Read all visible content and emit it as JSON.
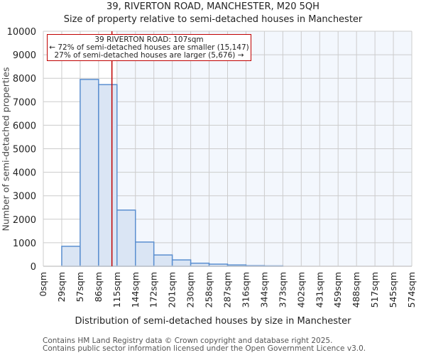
{
  "header": {
    "title": "39, RIVERTON ROAD, MANCHESTER, M20 5QH",
    "subtitle": "Size of property relative to semi-detached houses in Manchester"
  },
  "annotation": {
    "line1": "39 RIVERTON ROAD: 107sqm",
    "line2": "← 72% of semi-detached houses are smaller (15,147)",
    "line3": "27% of semi-detached houses are larger (5,676) →",
    "marker_value": 107
  },
  "footer": {
    "line1": "Contains HM Land Registry data © Crown copyright and database right 2025.",
    "line2": "Contains public sector information licensed under the Open Government Licence v3.0."
  },
  "colors": {
    "bar_fill": "#dae5f4",
    "bar_stroke": "#5b8fd0",
    "marker": "#c00000",
    "plot_bg_right": "#f3f7fd",
    "grid": "#cccccc"
  },
  "chart_data": {
    "type": "bar",
    "title": "39, RIVERTON ROAD, MANCHESTER, M20 5QH",
    "subtitle": "Size of property relative to semi-detached houses in Manchester",
    "xlabel": "Distribution of semi-detached houses by size in Manchester",
    "ylabel": "Number of semi-detached properties",
    "categories": [
      "0sqm",
      "29sqm",
      "57sqm",
      "86sqm",
      "115sqm",
      "144sqm",
      "172sqm",
      "201sqm",
      "230sqm",
      "258sqm",
      "287sqm",
      "316sqm",
      "344sqm",
      "373sqm",
      "402sqm",
      "431sqm",
      "459sqm",
      "488sqm",
      "517sqm",
      "545sqm",
      "574sqm"
    ],
    "bin_edges": [
      0,
      29,
      57,
      86,
      115,
      144,
      172,
      201,
      230,
      258,
      287,
      316,
      344,
      373,
      402,
      431,
      459,
      488,
      517,
      545,
      574
    ],
    "values": [
      0,
      850,
      7950,
      7730,
      2390,
      1030,
      480,
      270,
      130,
      90,
      55,
      25,
      15,
      0,
      0,
      0,
      0,
      0,
      0,
      0
    ],
    "yticks": [
      0,
      1000,
      2000,
      3000,
      4000,
      5000,
      6000,
      7000,
      8000,
      9000,
      10000
    ],
    "ylim": [
      0,
      10000
    ],
    "grid": true,
    "marker": {
      "value": 107,
      "label": "39 RIVERTON ROAD: 107sqm"
    }
  }
}
